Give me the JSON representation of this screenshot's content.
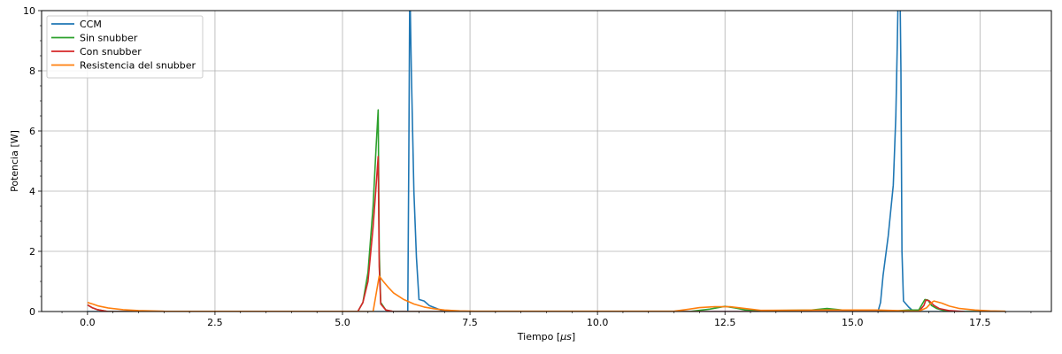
{
  "chart_data": {
    "type": "line",
    "title": "",
    "xlabel": "Tiempo [$\\mu s$]",
    "xlabel_main": "Tiempo [",
    "xlabel_mu": "μs",
    "xlabel_end": "]",
    "ylabel": "Potencia [W]",
    "xlim": [
      -0.9,
      18.9
    ],
    "ylim": [
      0,
      10
    ],
    "xticks": [
      0.0,
      2.5,
      5.0,
      7.5,
      10.0,
      12.5,
      15.0,
      17.5
    ],
    "xtick_labels": [
      "0.0",
      "2.5",
      "5.0",
      "7.5",
      "10.0",
      "12.5",
      "15.0",
      "17.5"
    ],
    "yticks": [
      0,
      2,
      4,
      6,
      8,
      10
    ],
    "ytick_labels": [
      "0",
      "2",
      "4",
      "6",
      "8",
      "10"
    ],
    "grid": true,
    "legend_position": "top-left",
    "series": [
      {
        "name": "CCM",
        "color": "#1f77b4",
        "x": [
          0.0,
          0.2,
          6.28,
          6.3,
          6.32,
          6.35,
          6.4,
          6.45,
          6.5,
          6.6,
          6.7,
          6.85,
          7.0,
          15.5,
          15.55,
          15.6,
          15.7,
          15.8,
          15.85,
          15.88,
          15.9,
          15.93,
          15.95,
          15.97,
          16.0,
          16.1,
          16.2,
          18.0
        ],
        "y": [
          0.0,
          0.0,
          0.0,
          5.0,
          11.0,
          8.0,
          4.0,
          1.8,
          0.4,
          0.35,
          0.2,
          0.1,
          0.0,
          0.0,
          0.3,
          1.2,
          2.5,
          4.2,
          6.5,
          9.0,
          11.0,
          11.0,
          8.0,
          2.0,
          0.35,
          0.15,
          0.0,
          0.0
        ]
      },
      {
        "name": "Sin snubber",
        "color": "#2ca02c",
        "x": [
          0.0,
          0.1,
          0.2,
          0.4,
          5.3,
          5.4,
          5.5,
          5.6,
          5.66,
          5.7,
          5.72,
          5.75,
          5.85,
          6.0,
          11.8,
          12.2,
          12.5,
          12.7,
          12.9,
          13.2,
          14.2,
          14.5,
          14.8,
          15.5,
          15.7,
          16.1,
          16.3,
          16.42,
          16.48,
          16.55,
          16.65,
          16.8,
          17.0,
          17.5
        ],
        "y": [
          0.22,
          0.12,
          0.06,
          0.0,
          0.0,
          0.3,
          1.3,
          3.5,
          5.5,
          6.7,
          2.0,
          0.3,
          0.05,
          0.0,
          0.0,
          0.08,
          0.17,
          0.12,
          0.05,
          0.03,
          0.05,
          0.1,
          0.05,
          0.05,
          0.0,
          0.05,
          0.05,
          0.4,
          0.38,
          0.2,
          0.1,
          0.03,
          0.0,
          0.0
        ]
      },
      {
        "name": "Con snubber",
        "color": "#d62728",
        "x": [
          0.0,
          0.1,
          0.2,
          0.4,
          5.3,
          5.4,
          5.5,
          5.6,
          5.66,
          5.7,
          5.72,
          5.75,
          5.85,
          6.0,
          16.3,
          16.4,
          16.44,
          16.5,
          16.6,
          16.7,
          16.9,
          17.2
        ],
        "y": [
          0.22,
          0.12,
          0.06,
          0.0,
          0.0,
          0.3,
          1.0,
          2.8,
          4.2,
          5.15,
          1.5,
          0.25,
          0.05,
          0.0,
          0.0,
          0.2,
          0.38,
          0.36,
          0.2,
          0.1,
          0.03,
          0.0
        ]
      },
      {
        "name": "Resistencia del snubber",
        "color": "#ff7f0e",
        "x": [
          0.0,
          0.1,
          0.2,
          0.4,
          0.7,
          1.0,
          1.5,
          5.6,
          5.72,
          5.8,
          5.9,
          6.0,
          6.2,
          6.4,
          6.6,
          6.8,
          7.0,
          7.3,
          7.6,
          11.5,
          11.8,
          12.0,
          12.3,
          12.6,
          12.8,
          13.2,
          14.5,
          15.5,
          16.3,
          16.45,
          16.55,
          16.6,
          16.75,
          16.9,
          17.1,
          17.4,
          17.7,
          18.0
        ],
        "y": [
          0.3,
          0.25,
          0.19,
          0.12,
          0.06,
          0.03,
          0.01,
          0.0,
          1.18,
          1.0,
          0.8,
          0.62,
          0.4,
          0.25,
          0.15,
          0.09,
          0.05,
          0.02,
          0.01,
          0.01,
          0.08,
          0.13,
          0.16,
          0.16,
          0.12,
          0.04,
          0.05,
          0.05,
          0.01,
          0.12,
          0.3,
          0.35,
          0.28,
          0.18,
          0.1,
          0.05,
          0.02,
          0.01
        ]
      }
    ]
  }
}
